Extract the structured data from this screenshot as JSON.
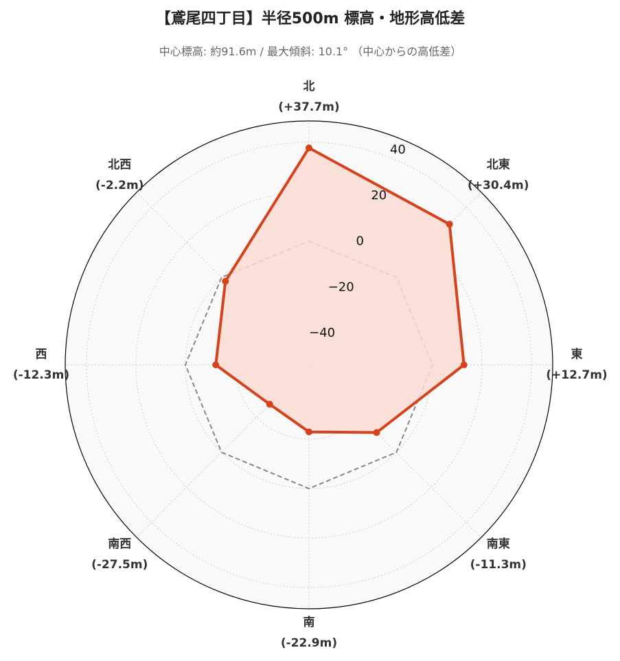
{
  "chart_data": {
    "type": "radar",
    "title": "【鳶尾四丁目】半径500m 標高・地形高低差",
    "subtitle": "中心標高: 約91.6m / 最大傾斜: 10.1° （中心からの高低差）",
    "categories": [
      "北",
      "北東",
      "東",
      "南東",
      "南",
      "南西",
      "西",
      "北西"
    ],
    "values": [
      37.7,
      30.4,
      12.7,
      -11.3,
      -22.9,
      -27.5,
      -12.3,
      -2.2
    ],
    "value_labels": [
      "(+37.7m)",
      "(+30.4m)",
      "(+12.7m)",
      "(-11.3m)",
      "(-22.9m)",
      "(-27.5m)",
      "(-12.3m)",
      "(-2.2m)"
    ],
    "color": "#d4431c",
    "fill_color": "#fadcd3",
    "baseline": 0,
    "baseline_color": "#888888",
    "ylim": [
      -50,
      48.6
    ],
    "yticks": [
      {
        "value": -40,
        "label": "−40"
      },
      {
        "value": -20,
        "label": "−20"
      },
      0,
      20,
      40
    ],
    "grid": true
  }
}
